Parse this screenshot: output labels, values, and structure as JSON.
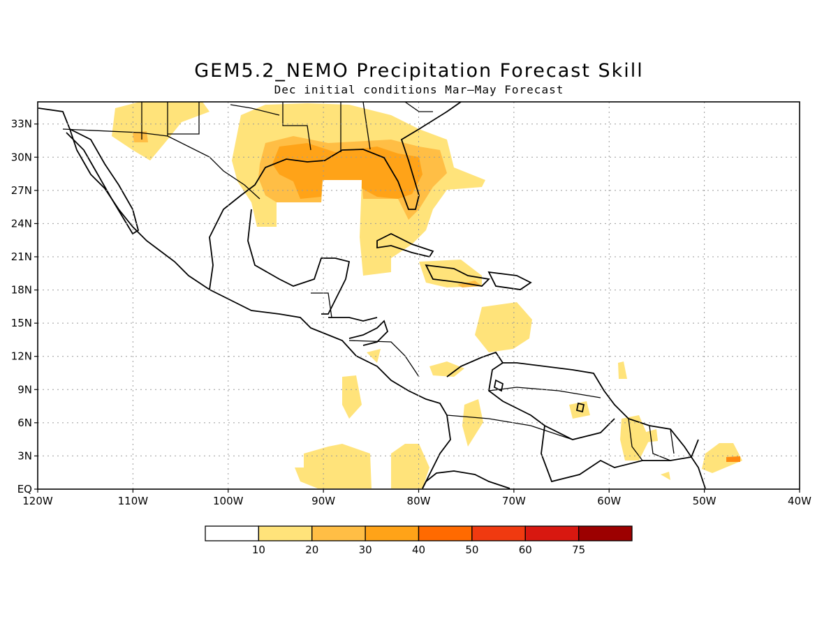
{
  "title": "GEM5.2_NEMO Precipitation Forecast Skill",
  "subtitle": "Dec initial conditions  Mar–May Forecast",
  "map": {
    "lon_range": [
      -120,
      -40
    ],
    "lat_range": [
      0,
      35
    ],
    "lat_ticks": [
      {
        "value": 33,
        "label": "33N"
      },
      {
        "value": 30,
        "label": "30N"
      },
      {
        "value": 27,
        "label": "27N"
      },
      {
        "value": 24,
        "label": "24N"
      },
      {
        "value": 21,
        "label": "21N"
      },
      {
        "value": 18,
        "label": "18N"
      },
      {
        "value": 15,
        "label": "15N"
      },
      {
        "value": 12,
        "label": "12N"
      },
      {
        "value": 9,
        "label": "9N"
      },
      {
        "value": 6,
        "label": "6N"
      },
      {
        "value": 3,
        "label": "3N"
      },
      {
        "value": 0,
        "label": "EQ"
      }
    ],
    "lon_ticks": [
      {
        "value": -120,
        "label": "120W"
      },
      {
        "value": -110,
        "label": "110W"
      },
      {
        "value": -100,
        "label": "100W"
      },
      {
        "value": -90,
        "label": "90W"
      },
      {
        "value": -80,
        "label": "80W"
      },
      {
        "value": -70,
        "label": "70W"
      },
      {
        "value": -60,
        "label": "60W"
      },
      {
        "value": -50,
        "label": "50W"
      },
      {
        "value": -40,
        "label": "40W"
      }
    ],
    "grid": "dotted"
  },
  "colorbar": {
    "labels": [
      "10",
      "20",
      "30",
      "40",
      "50",
      "60",
      "75"
    ],
    "colors": [
      "#ffffff",
      "#ffe37a",
      "#ffbe45",
      "#ffa318",
      "#ff6a00",
      "#f03a10",
      "#d81810",
      "#9c0000"
    ]
  }
}
